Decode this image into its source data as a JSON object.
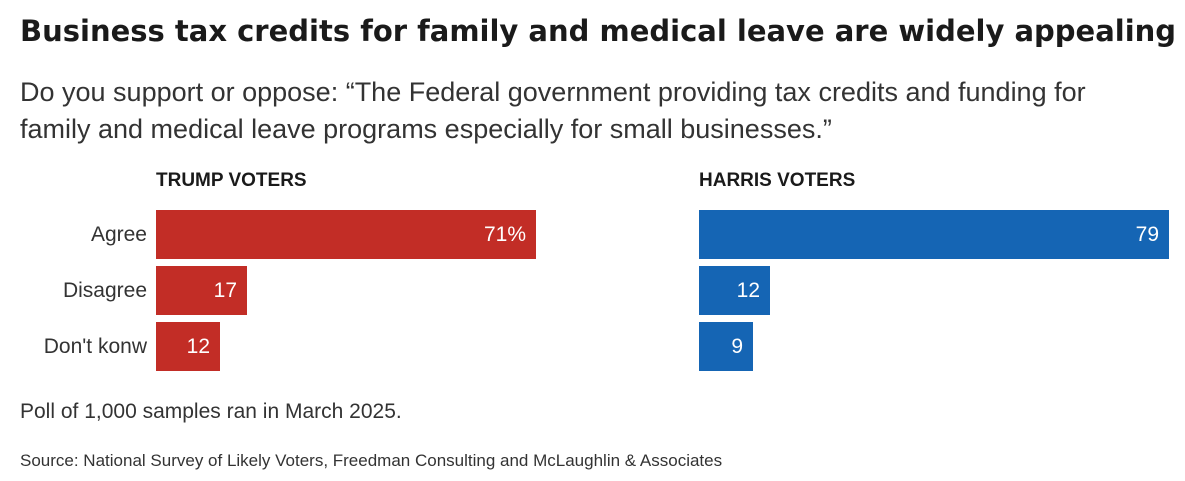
{
  "title": "Business tax credits for family and medical leave are widely appealing",
  "subtitle": "Do you support or oppose: “The Federal government providing tax credits and funding for family and medical leave programs especially for small businesses.”",
  "note": "Poll of 1,000 samples ran in March 2025.",
  "source": "Source: National Survey of Likely Voters, Freedman Consulting and McLaughlin & Associates",
  "chart_data": [
    {
      "type": "bar",
      "orientation": "horizontal",
      "panel_title": "TRUMP VOTERS",
      "categories": [
        "Agree",
        "Disagree",
        "Don't konw"
      ],
      "values": [
        71,
        17,
        12
      ],
      "value_labels": [
        "71%",
        "17",
        "12"
      ],
      "color": "#c22d26",
      "xlim": [
        0,
        79
      ],
      "grid": false
    },
    {
      "type": "bar",
      "orientation": "horizontal",
      "panel_title": "HARRIS VOTERS",
      "categories": [
        "Agree",
        "Disagree",
        "Don't konw"
      ],
      "values": [
        79,
        12,
        9
      ],
      "value_labels": [
        "79",
        "12",
        "9"
      ],
      "color": "#1565b4",
      "xlim": [
        0,
        79
      ],
      "grid": false
    }
  ]
}
